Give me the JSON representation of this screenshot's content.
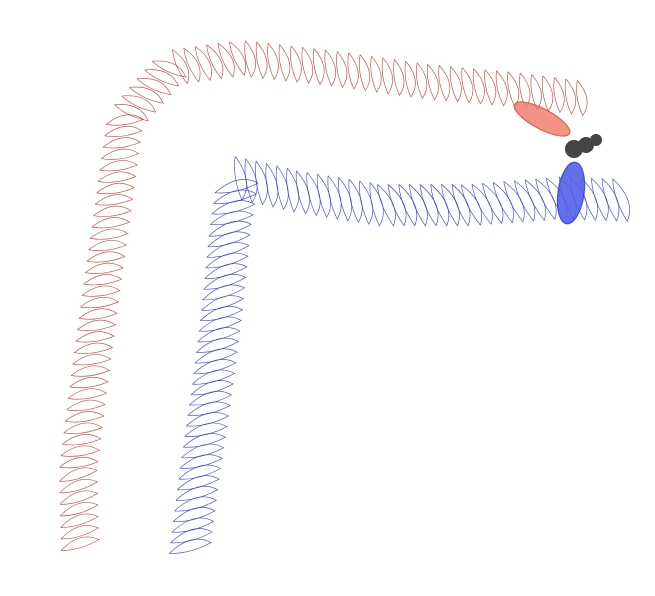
{
  "figure": {
    "background": "#ffffff",
    "trails": [
      {
        "id": "upper-wing-trail",
        "color": "#c0392b"
      },
      {
        "id": "lower-wing-trail",
        "color": "#2b3bd0"
      }
    ],
    "wings": [
      {
        "id": "upper-wing",
        "fill": "#f08070",
        "stroke": "#d04a3a"
      },
      {
        "id": "lower-wing",
        "fill": "#5560e8",
        "stroke": "#2b3bd0"
      }
    ],
    "body": {
      "fill": "#444444"
    }
  }
}
